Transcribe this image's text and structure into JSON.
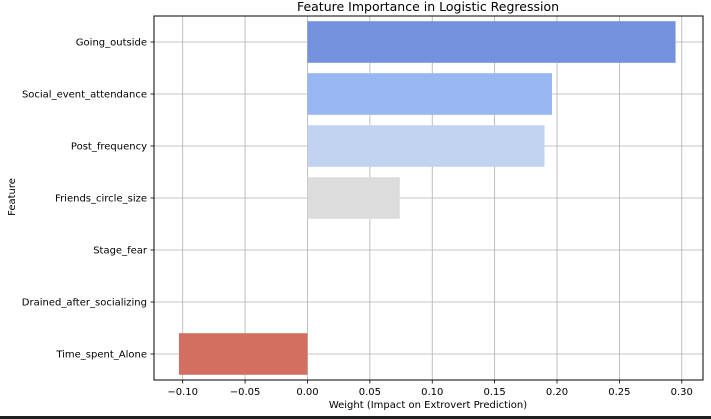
{
  "chart_data": {
    "type": "bar",
    "orientation": "horizontal",
    "title": "Feature Importance in Logistic Regression",
    "xlabel": "Weight (Impact on Extrovert Prediction)",
    "ylabel": "Feature",
    "categories": [
      "Going_outside",
      "Social_event_attendance",
      "Post_frequency",
      "Friends_circle_size",
      "Stage_fear",
      "Drained_after_socializing",
      "Time_spent_Alone"
    ],
    "values": [
      0.295,
      0.196,
      0.19,
      0.074,
      0.0,
      0.0,
      -0.103
    ],
    "colors": [
      "#7491de",
      "#98b7f2",
      "#c1d3f1",
      "#dcdcdc",
      "#e6e6e6",
      "#ecc0a8",
      "#d26f60"
    ],
    "xlim": [
      -0.123,
      0.317
    ],
    "xticks": [
      -0.1,
      -0.05,
      0.0,
      0.05,
      0.1,
      0.15,
      0.2,
      0.25,
      0.3
    ],
    "xtick_labels": [
      "−0.10",
      "−0.05",
      "0.00",
      "0.05",
      "0.10",
      "0.15",
      "0.20",
      "0.25",
      "0.30"
    ],
    "grid": true,
    "legend": "none"
  }
}
